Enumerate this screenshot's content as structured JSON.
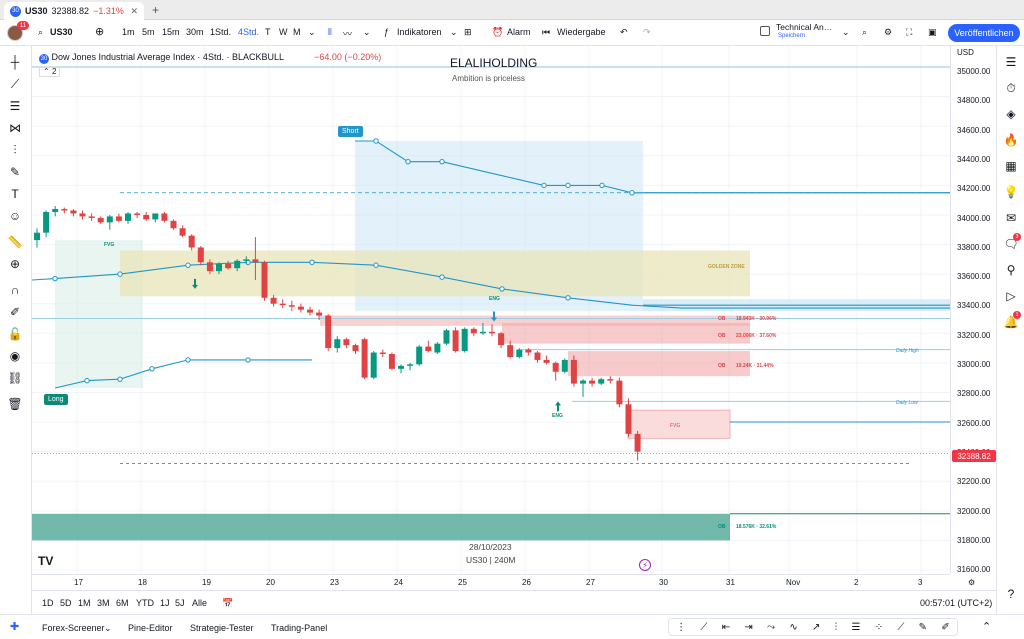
{
  "browser": {
    "tab_title": "US30",
    "tab_price": "32388.82",
    "tab_change": "−1.31%"
  },
  "toolbar": {
    "symbol": "US30",
    "intervals": [
      "1m",
      "5m",
      "15m",
      "30m",
      "1Std.",
      "4Std.",
      "T",
      "W",
      "M"
    ],
    "indicators_label": "Indikatoren",
    "alert_label": "Alarm",
    "replay_label": "Wiedergabe",
    "tech_label": "Technical An…",
    "tech_sub": "Speichern",
    "publish_label": "Veröffentlichen"
  },
  "legend": {
    "title": "Dow Jones Industrial Average Index · 4Std. · BLACKBULL",
    "change": "−64.00 (−0.20%)",
    "collapse": "2"
  },
  "watermark": {
    "title": "ELALIHOLDING",
    "subtitle": "Ambition is priceless",
    "date": "28/10/2023",
    "symbol": "US30 | 240M"
  },
  "labels": {
    "short": "Short",
    "long": "Long",
    "golden": "GOLDEN ZONE",
    "fvg": "FVG",
    "eng": "ENG",
    "daily_high": "Daily High",
    "daily_low": "Daily Low",
    "ob": "OB",
    "ob1": "18.943K · 30.96%",
    "ob2": "23.006K · 37.60%",
    "ob3": "19.24K · 31.44%",
    "ob4": "18.576K · 32.61%"
  },
  "price_axis": {
    "currency": "USD",
    "levels": [
      "35000.00",
      "34800.00",
      "34600.00",
      "34400.00",
      "34200.00",
      "34000.00",
      "33800.00",
      "33600.00",
      "33400.00",
      "33200.00",
      "33000.00",
      "32800.00",
      "32600.00",
      "32400.00",
      "32200.00",
      "32000.00",
      "31800.00",
      "31600.00"
    ],
    "last": "32388.82"
  },
  "time_axis": [
    "17",
    "18",
    "19",
    "20",
    "23",
    "24",
    "25",
    "26",
    "27",
    "30",
    "31",
    "Nov",
    "2",
    "3"
  ],
  "ranges": [
    "1D",
    "5D",
    "1M",
    "3M",
    "6M",
    "YTD",
    "1J",
    "5J",
    "Alle"
  ],
  "clock": "00:57:01 (UTC+2)",
  "bottom": [
    "Forex-Screener",
    "Pine-Editor",
    "Strategie-Tester",
    "Trading-Panel"
  ],
  "colors": {
    "up": "#089981",
    "down": "#e04343",
    "accent": "#2962ff"
  },
  "chart_data": {
    "type": "candlestick",
    "ylim": [
      31600,
      35000
    ],
    "candles": [
      [
        33830,
        33910,
        33780,
        33880
      ],
      [
        33880,
        34030,
        33850,
        34020
      ],
      [
        34020,
        34060,
        33990,
        34040
      ],
      [
        34040,
        34050,
        34010,
        34030
      ],
      [
        34030,
        34040,
        33990,
        34010
      ],
      [
        34010,
        34030,
        33970,
        33990
      ],
      [
        33990,
        34010,
        33960,
        33980
      ],
      [
        33980,
        33990,
        33940,
        33950
      ],
      [
        33950,
        34000,
        33900,
        33990
      ],
      [
        33990,
        34010,
        33950,
        33960
      ],
      [
        33960,
        34020,
        33940,
        34010
      ],
      [
        34010,
        34020,
        33980,
        34000
      ],
      [
        34000,
        34020,
        33960,
        33970
      ],
      [
        33970,
        34010,
        33950,
        34010
      ],
      [
        34010,
        34020,
        33950,
        33960
      ],
      [
        33960,
        33970,
        33900,
        33910
      ],
      [
        33910,
        33930,
        33850,
        33860
      ],
      [
        33860,
        33870,
        33760,
        33780
      ],
      [
        33780,
        33790,
        33660,
        33680
      ],
      [
        33680,
        33700,
        33600,
        33620
      ],
      [
        33620,
        33680,
        33600,
        33670
      ],
      [
        33670,
        33690,
        33630,
        33640
      ],
      [
        33640,
        33700,
        33620,
        33690
      ],
      [
        33690,
        33720,
        33670,
        33700
      ],
      [
        33700,
        33850,
        33560,
        33680
      ],
      [
        33680,
        33690,
        33420,
        33440
      ],
      [
        33440,
        33460,
        33380,
        33400
      ],
      [
        33400,
        33430,
        33370,
        33390
      ],
      [
        33390,
        33420,
        33350,
        33380
      ],
      [
        33380,
        33400,
        33340,
        33360
      ],
      [
        33360,
        33380,
        33320,
        33340
      ],
      [
        33340,
        33360,
        33290,
        33320
      ],
      [
        33320,
        33330,
        33080,
        33100
      ],
      [
        33100,
        33180,
        33070,
        33160
      ],
      [
        33160,
        33170,
        33100,
        33120
      ],
      [
        33120,
        33130,
        33060,
        33080
      ],
      [
        33160,
        33170,
        32890,
        32900
      ],
      [
        32900,
        33080,
        32890,
        33070
      ],
      [
        33070,
        33090,
        33040,
        33060
      ],
      [
        33060,
        33070,
        32950,
        32960
      ],
      [
        32960,
        32990,
        32930,
        32980
      ],
      [
        32980,
        33000,
        32950,
        32990
      ],
      [
        32990,
        33120,
        32980,
        33110
      ],
      [
        33110,
        33150,
        33070,
        33080
      ],
      [
        33070,
        33140,
        33060,
        33130
      ],
      [
        33130,
        33230,
        33120,
        33220
      ],
      [
        33220,
        33240,
        33070,
        33080
      ],
      [
        33080,
        33240,
        33070,
        33230
      ],
      [
        33230,
        33240,
        33180,
        33200
      ],
      [
        33200,
        33270,
        33190,
        33210
      ],
      [
        33210,
        33260,
        33180,
        33200
      ],
      [
        33200,
        33210,
        33100,
        33120
      ],
      [
        33120,
        33150,
        33030,
        33040
      ],
      [
        33040,
        33100,
        33030,
        33090
      ],
      [
        33090,
        33100,
        33050,
        33070
      ],
      [
        33070,
        33080,
        33000,
        33020
      ],
      [
        33020,
        33050,
        32990,
        33000
      ],
      [
        33000,
        33010,
        32880,
        32940
      ],
      [
        32940,
        33030,
        32930,
        33020
      ],
      [
        33020,
        33050,
        32840,
        32860
      ],
      [
        32860,
        32890,
        32770,
        32880
      ],
      [
        32880,
        32900,
        32840,
        32860
      ],
      [
        32860,
        32900,
        32850,
        32890
      ],
      [
        32890,
        32910,
        32860,
        32880
      ],
      [
        32880,
        32900,
        32700,
        32720
      ],
      [
        32720,
        32760,
        32500,
        32520
      ],
      [
        32520,
        32540,
        32340,
        32400
      ]
    ]
  }
}
